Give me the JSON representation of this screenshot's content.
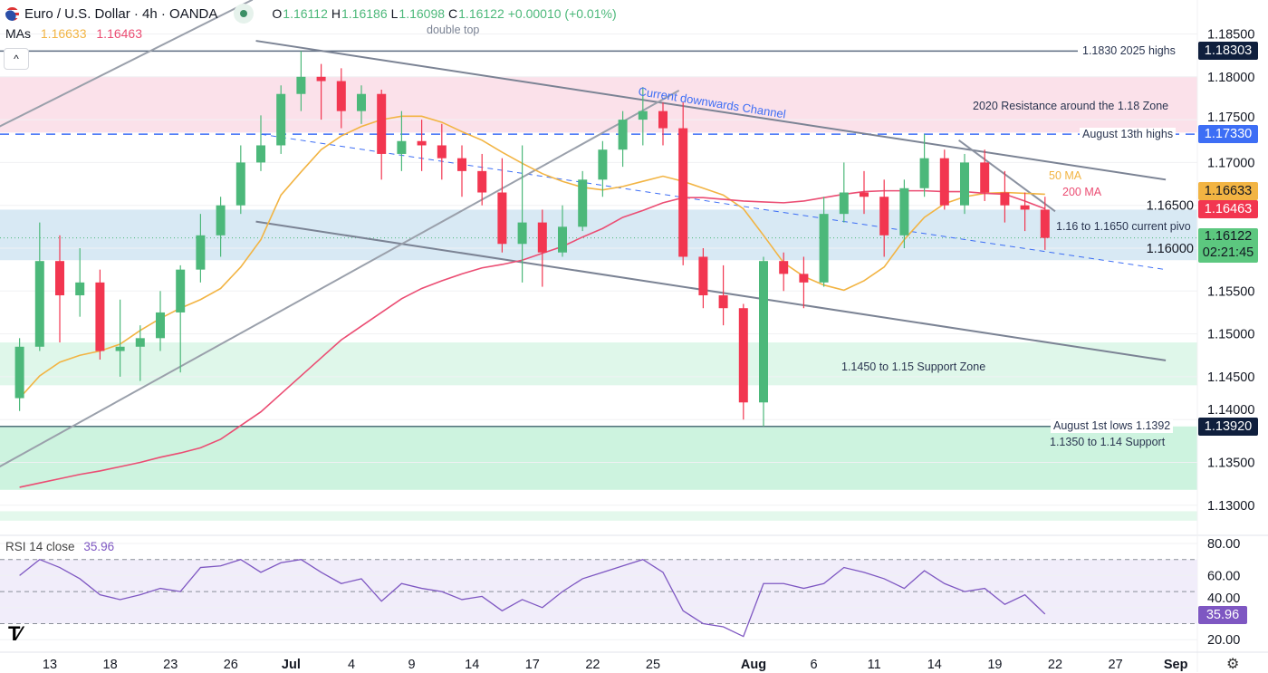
{
  "header": {
    "title": "Euro / U.S. Dollar · 4h · OANDA",
    "o_label": "O",
    "o": "1.16112",
    "h_label": "H",
    "h": "1.16186",
    "l_label": "L",
    "l": "1.16098",
    "c_label": "C",
    "c": "1.16122",
    "change": "+0.00010 (+0.01%)",
    "icon": "eu-us-flag-icon"
  },
  "mas_legend": {
    "label": "MAs",
    "ma50": "1.16633",
    "ma200": "1.16463"
  },
  "collapse_label": "^",
  "rsi_legend": {
    "label": "RSI 14 close",
    "value": "35.96"
  },
  "colors": {
    "up": "#4cb87a",
    "down": "#f23650",
    "ma50": "#f2b443",
    "ma200": "#eb4d73",
    "rsi": "#7e57c2",
    "navy": "#0f1f3d",
    "blue": "#3d6ef5"
  },
  "annotations": {
    "double_top": "double top",
    "channel": "Current downwards Channel",
    "resistance_zone": "2020 Resistance around the 1.18 Zone",
    "aug13": "August 13th highs",
    "highs2025": "1.1830 2025 highs",
    "ma50": "50 MA",
    "ma200": "200 MA",
    "pivot": "1.16 to 1.1650 current pivo",
    "support_1145": "1.1450 to 1.15 Support Zone",
    "aug1": "August 1st lows 1.1392",
    "support_1135": "1.1350 to 1.14 Support"
  },
  "price_badges": {
    "highs": "1.18303",
    "aug13": "1.17330",
    "ma50": "1.16633",
    "ma200": "1.16463",
    "last": "1.16122",
    "countdown": "02:21:45",
    "aug1": "1.13920",
    "rsi": "35.96"
  },
  "chart_data": [
    {
      "type": "candlestick",
      "title": "Euro / U.S. Dollar · 4h · OANDA",
      "ylim": [
        1.1275,
        1.1875
      ],
      "grid": true,
      "y_ticks": [
        "1.13000",
        "1.13500",
        "1.14000",
        "1.14500",
        "1.15000",
        "1.15500",
        "1.16000",
        "1.16500",
        "1.17000",
        "1.17500",
        "1.18000",
        "1.18500"
      ],
      "x_ticks": [
        {
          "label": "13",
          "date": "2025-06-13"
        },
        {
          "label": "18",
          "date": "2025-06-18"
        },
        {
          "label": "23",
          "date": "2025-06-23"
        },
        {
          "label": "26",
          "date": "2025-06-26"
        },
        {
          "label": "Jul",
          "date": "2025-07-01"
        },
        {
          "label": "4",
          "date": "2025-07-04"
        },
        {
          "label": "9",
          "date": "2025-07-09"
        },
        {
          "label": "14",
          "date": "2025-07-14"
        },
        {
          "label": "17",
          "date": "2025-07-17"
        },
        {
          "label": "22",
          "date": "2025-07-22"
        },
        {
          "label": "25",
          "date": "2025-07-25"
        },
        {
          "label": "Aug",
          "date": "2025-08-01"
        },
        {
          "label": "6",
          "date": "2025-08-06"
        },
        {
          "label": "11",
          "date": "2025-08-11"
        },
        {
          "label": "14",
          "date": "2025-08-14"
        },
        {
          "label": "19",
          "date": "2025-08-19"
        },
        {
          "label": "22",
          "date": "2025-08-22"
        },
        {
          "label": "27",
          "date": "2025-08-27"
        },
        {
          "label": "Sep",
          "date": "2025-09-01"
        }
      ],
      "candles": [
        [
          "2025-06-11",
          1.1425,
          1.1495,
          1.141,
          1.1485
        ],
        [
          "2025-06-12",
          1.1485,
          1.163,
          1.148,
          1.1585
        ],
        [
          "2025-06-13",
          1.1585,
          1.1615,
          1.149,
          1.1545
        ],
        [
          "2025-06-16",
          1.1545,
          1.16,
          1.152,
          1.156
        ],
        [
          "2025-06-17",
          1.156,
          1.1575,
          1.147,
          1.148
        ],
        [
          "2025-06-18",
          1.148,
          1.154,
          1.145,
          1.1485
        ],
        [
          "2025-06-19",
          1.1485,
          1.151,
          1.1445,
          1.1495
        ],
        [
          "2025-06-20",
          1.1495,
          1.155,
          1.148,
          1.1525
        ],
        [
          "2025-06-23",
          1.1525,
          1.158,
          1.1455,
          1.1575
        ],
        [
          "2025-06-24",
          1.1575,
          1.164,
          1.156,
          1.1615
        ],
        [
          "2025-06-25",
          1.1615,
          1.166,
          1.159,
          1.165
        ],
        [
          "2025-06-26",
          1.165,
          1.172,
          1.164,
          1.17
        ],
        [
          "2025-06-27",
          1.17,
          1.1755,
          1.169,
          1.172
        ],
        [
          "2025-06-30",
          1.172,
          1.179,
          1.171,
          1.178
        ],
        [
          "2025-07-01",
          1.178,
          1.183,
          1.176,
          1.18
        ],
        [
          "2025-07-02",
          1.18,
          1.1815,
          1.175,
          1.1795
        ],
        [
          "2025-07-03",
          1.1795,
          1.181,
          1.174,
          1.176
        ],
        [
          "2025-07-04",
          1.176,
          1.179,
          1.1745,
          1.178
        ],
        [
          "2025-07-07",
          1.178,
          1.1785,
          1.168,
          1.171
        ],
        [
          "2025-07-08",
          1.171,
          1.176,
          1.169,
          1.1725
        ],
        [
          "2025-07-09",
          1.1725,
          1.175,
          1.169,
          1.172
        ],
        [
          "2025-07-10",
          1.172,
          1.1745,
          1.168,
          1.1705
        ],
        [
          "2025-07-11",
          1.1705,
          1.172,
          1.166,
          1.169
        ],
        [
          "2025-07-14",
          1.169,
          1.171,
          1.165,
          1.1665
        ],
        [
          "2025-07-15",
          1.1665,
          1.1705,
          1.1595,
          1.1605
        ],
        [
          "2025-07-16",
          1.1605,
          1.172,
          1.156,
          1.163
        ],
        [
          "2025-07-17",
          1.163,
          1.1645,
          1.1555,
          1.1595
        ],
        [
          "2025-07-18",
          1.1595,
          1.165,
          1.159,
          1.1625
        ],
        [
          "2025-07-21",
          1.1625,
          1.169,
          1.162,
          1.168
        ],
        [
          "2025-07-22",
          1.168,
          1.1725,
          1.166,
          1.1715
        ],
        [
          "2025-07-23",
          1.1715,
          1.176,
          1.1695,
          1.175
        ],
        [
          "2025-07-24",
          1.175,
          1.1788,
          1.172,
          1.176
        ],
        [
          "2025-07-25",
          1.176,
          1.177,
          1.172,
          1.174
        ],
        [
          "2025-07-28",
          1.174,
          1.177,
          1.158,
          1.159
        ],
        [
          "2025-07-29",
          1.159,
          1.16,
          1.153,
          1.1545
        ],
        [
          "2025-07-30",
          1.1545,
          1.158,
          1.151,
          1.153
        ],
        [
          "2025-07-31",
          1.153,
          1.1535,
          1.14,
          1.142
        ],
        [
          "2025-08-01",
          1.142,
          1.159,
          1.1392,
          1.1585
        ],
        [
          "2025-08-04",
          1.1585,
          1.1595,
          1.155,
          1.157
        ],
        [
          "2025-08-05",
          1.157,
          1.159,
          1.153,
          1.156
        ],
        [
          "2025-08-06",
          1.156,
          1.166,
          1.1555,
          1.164
        ],
        [
          "2025-08-07",
          1.164,
          1.17,
          1.163,
          1.1665
        ],
        [
          "2025-08-08",
          1.1665,
          1.169,
          1.164,
          1.166
        ],
        [
          "2025-08-11",
          1.166,
          1.168,
          1.159,
          1.1615
        ],
        [
          "2025-08-12",
          1.1615,
          1.168,
          1.16,
          1.167
        ],
        [
          "2025-08-13",
          1.167,
          1.1733,
          1.166,
          1.1705
        ],
        [
          "2025-08-14",
          1.1705,
          1.1715,
          1.1645,
          1.165
        ],
        [
          "2025-08-15",
          1.165,
          1.171,
          1.164,
          1.17
        ],
        [
          "2025-08-18",
          1.17,
          1.1715,
          1.1655,
          1.1665
        ],
        [
          "2025-08-19",
          1.1665,
          1.169,
          1.163,
          1.165
        ],
        [
          "2025-08-20",
          1.165,
          1.1665,
          1.162,
          1.1645
        ],
        [
          "2025-08-21",
          1.1645,
          1.166,
          1.1598,
          1.1612
        ]
      ],
      "series": [
        {
          "name": "50 MA",
          "values": [
            1.1425,
            1.1451,
            1.1467,
            1.1475,
            1.148,
            1.1488,
            1.1504,
            1.1518,
            1.153,
            1.154,
            1.1553,
            1.1578,
            1.161,
            1.1662,
            1.1689,
            1.1715,
            1.1731,
            1.1742,
            1.175,
            1.1754,
            1.1754,
            1.1747,
            1.1736,
            1.1726,
            1.1712,
            1.1699,
            1.1687,
            1.1678,
            1.1671,
            1.1668,
            1.1672,
            1.1678,
            1.1684,
            1.1678,
            1.167,
            1.1662,
            1.1646,
            1.1615,
            1.1583,
            1.1567,
            1.1557,
            1.1551,
            1.1562,
            1.1578,
            1.161,
            1.1636,
            1.1652,
            1.166,
            1.1664,
            1.1665,
            1.1664,
            1.1663
          ]
        },
        {
          "name": "200 MA",
          "values": [
            1.1321,
            1.1326,
            1.1331,
            1.1336,
            1.134,
            1.1345,
            1.135,
            1.1356,
            1.1361,
            1.1367,
            1.1377,
            1.1393,
            1.1409,
            1.143,
            1.1451,
            1.1472,
            1.1493,
            1.1509,
            1.1525,
            1.1541,
            1.1553,
            1.1562,
            1.157,
            1.1577,
            1.1581,
            1.1586,
            1.1594,
            1.1602,
            1.1613,
            1.1623,
            1.1636,
            1.1644,
            1.1653,
            1.1659,
            1.1659,
            1.1657,
            1.1655,
            1.1654,
            1.1653,
            1.1655,
            1.1659,
            1.1663,
            1.1666,
            1.1667,
            1.1667,
            1.1667,
            1.1666,
            1.1666,
            1.1664,
            1.1663,
            1.1655,
            1.1646
          ]
        }
      ],
      "levels": [
        {
          "price": 1.183,
          "style": "solid",
          "color": "#5d6b80"
        },
        {
          "price": 1.1733,
          "style": "dashed",
          "color": "#3d6ef5"
        },
        {
          "price": 1.1392,
          "style": "solid",
          "color": "#50707a"
        }
      ],
      "zones": [
        {
          "from": 1.1735,
          "to": 1.18,
          "color": "#fbe1ea"
        },
        {
          "from": 1.1586,
          "to": 1.1645,
          "color": "#d8e9f4"
        },
        {
          "from": 1.144,
          "to": 1.149,
          "color": "#dff7ea"
        },
        {
          "from": 1.1318,
          "to": 1.1392,
          "color": "#cdf3df"
        },
        {
          "from": 1.1282,
          "to": 1.1293,
          "color": "#e3f8ec"
        }
      ],
      "trendlines": [
        {
          "from": [
            "2025-06-27T06:00",
            1.1842
          ],
          "to": [
            "2025-08-29T12:00",
            1.168
          ],
          "style": "solid",
          "color": "#7b8394"
        },
        {
          "from": [
            "2025-06-27T06:00",
            1.1631
          ],
          "to": [
            "2025-08-29T12:00",
            1.1469
          ],
          "style": "solid",
          "color": "#7b8394"
        },
        {
          "from": [
            "2025-06-27T12:00",
            1.1733
          ],
          "to": [
            "2025-08-29T12:00",
            1.1575
          ],
          "style": "dashed",
          "color": "#3d6ef5"
        },
        {
          "from": [
            "2025-06-10T12:00",
            1.1345
          ],
          "to": [
            "2025-07-28T07:00",
            1.1784
          ],
          "style": "solid",
          "color": "#9aa0ab"
        },
        {
          "from": [
            "2025-06-10T12:00",
            1.1742
          ],
          "to": [
            "2025-06-27T02:00",
            1.189
          ],
          "style": "solid",
          "color": "#9aa0ab"
        },
        {
          "from": [
            "2025-08-15T05:00",
            1.1726
          ],
          "to": [
            "2025-08-22T00:00",
            1.1643
          ],
          "style": "solid",
          "color": "#8a91a0"
        }
      ]
    },
    {
      "type": "line",
      "title": "RSI 14 close",
      "ylim": [
        15,
        85
      ],
      "y_ticks": [
        "20.00",
        "40.00",
        "60.00",
        "80.00"
      ],
      "bands": [
        30,
        50,
        70
      ],
      "series": [
        {
          "name": "RSI 14 close",
          "values": [
            60,
            70,
            65,
            58,
            48,
            45,
            48,
            52,
            50,
            65,
            66,
            70,
            62,
            68,
            70,
            62,
            55,
            58,
            44,
            55,
            52,
            50,
            45,
            47,
            38,
            45,
            40,
            50,
            58,
            62,
            66,
            70,
            62,
            38,
            30,
            28,
            22,
            55,
            55,
            52,
            55,
            65,
            62,
            58,
            52,
            63,
            55,
            50,
            52,
            42,
            48,
            35.96
          ]
        }
      ]
    }
  ]
}
